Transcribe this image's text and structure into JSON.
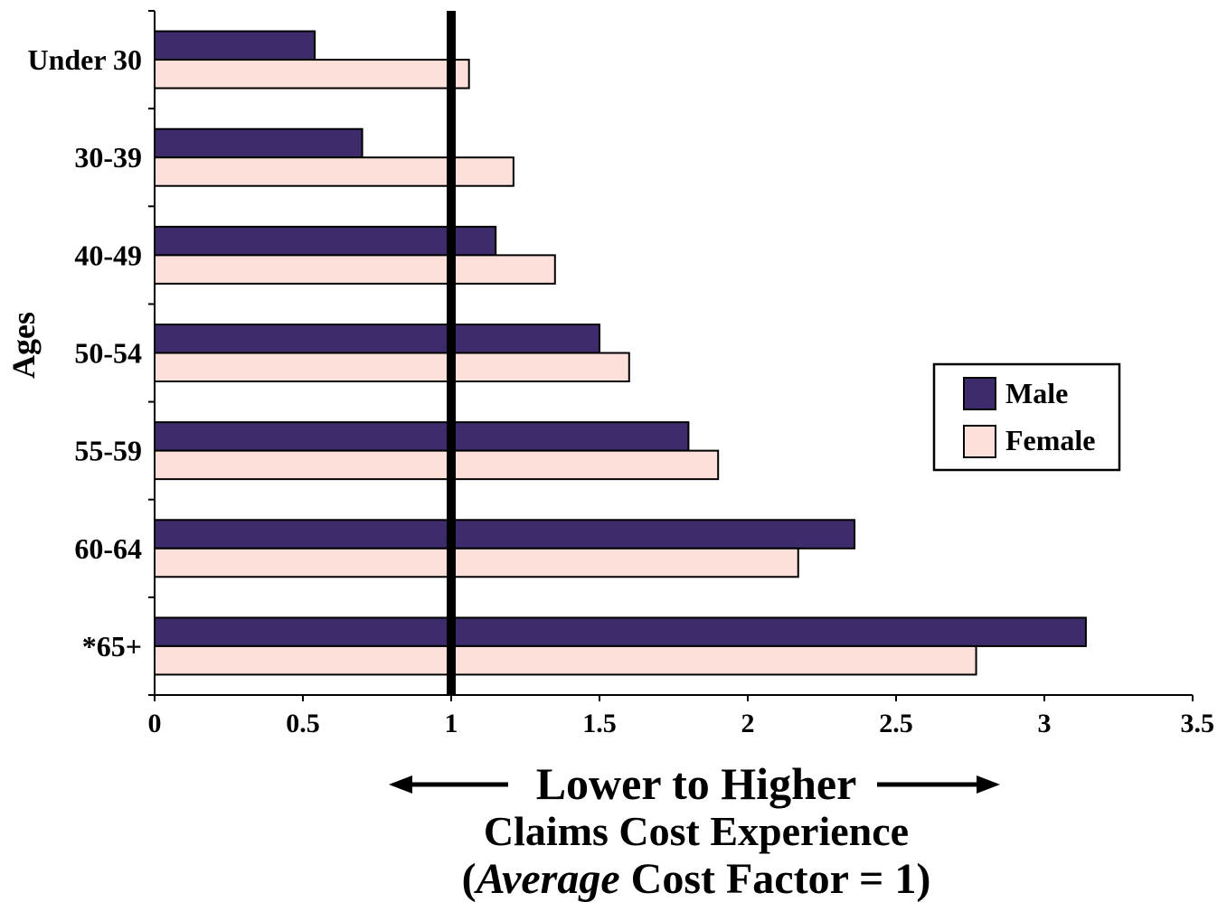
{
  "chart_data": {
    "type": "bar",
    "orientation": "horizontal",
    "categories": [
      "Under 30",
      "30-39",
      "40-49",
      "50-54",
      "55-59",
      "60-64",
      "*65+"
    ],
    "series": [
      {
        "name": "Male",
        "values": [
          0.54,
          0.7,
          1.15,
          1.5,
          1.8,
          2.36,
          3.14
        ],
        "color": "#3d2b6b"
      },
      {
        "name": "Female",
        "values": [
          1.06,
          1.21,
          1.35,
          1.6,
          1.9,
          2.17,
          2.77
        ],
        "color": "#fde0da"
      }
    ],
    "xlim": [
      0,
      3.5
    ],
    "xticks": [
      "0",
      "0.5",
      "1",
      "1.5",
      "2",
      "2.5",
      "3",
      "3.5"
    ],
    "ylabel": "Ages",
    "reference_line": 1,
    "legend_position": "right",
    "grid": false,
    "caption": {
      "line1": "Lower to Higher",
      "line2": "Claims Cost Experience",
      "line3_open": "(",
      "line3_italic": "Average",
      "line3_rest": " Cost Factor = 1)"
    }
  }
}
